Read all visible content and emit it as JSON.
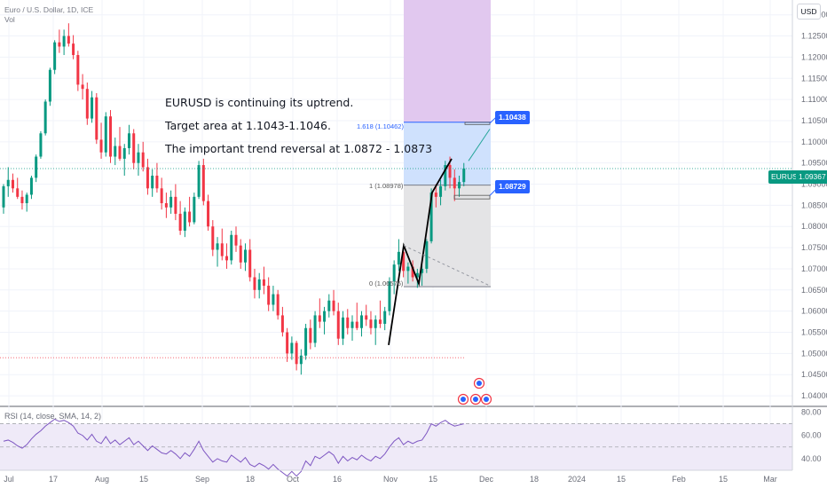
{
  "header": {
    "symbol_line": "Euro / U.S. Dollar, 1D, ICE",
    "vol_label": "Vol",
    "currency_button": "USD"
  },
  "annotations": {
    "line1": "EURUSD is continuing its uptrend.",
    "line2": "Target area at 1.1043-1.1046.",
    "line3": "The important trend reversal at 1.0872 - 1.0873"
  },
  "fib_labels": {
    "f1618": "1.618 (1.10462)",
    "f1": "1 (1.08978)",
    "f0": "0 (1.06576)"
  },
  "price_tags": {
    "target": "1.10438",
    "reversal": "1.08729",
    "symbol": "EURUSD",
    "last_price": "1.09367"
  },
  "colors": {
    "up": "#089981",
    "down": "#f23645",
    "fib_top": "#e1c8ef",
    "fib_mid": "#cfe1fd",
    "fib_low": "#e4e4e6",
    "tag_blue": "#2962ff",
    "rsi_line": "#7e57c2",
    "rsi_band": "#efeaf8",
    "last_line": "#089981"
  },
  "chart_data": {
    "type": "candlestick",
    "price_axis": {
      "ticks": [
        "1.13000",
        "1.12500",
        "1.12000",
        "1.11500",
        "1.11000",
        "1.10500",
        "1.10000",
        "1.09500",
        "1.09000",
        "1.08500",
        "1.08000",
        "1.07500",
        "1.07000",
        "1.06500",
        "1.06000",
        "1.05500",
        "1.05000",
        "1.04500",
        "1.04000"
      ],
      "range": [
        1.0375,
        1.1335
      ]
    },
    "time_axis": {
      "ticks": [
        "Jul",
        "17",
        "Aug",
        "15",
        "Sep",
        "18",
        "Oct",
        "16",
        "Nov",
        "15",
        "Dec",
        "18",
        "2024",
        "15",
        "Feb",
        "15",
        "Mar"
      ]
    },
    "candles": [
      [
        1.0845,
        1.09,
        1.083,
        1.0895
      ],
      [
        1.0895,
        1.094,
        1.087,
        1.091
      ],
      [
        1.091,
        1.0925,
        1.088,
        1.089
      ],
      [
        1.089,
        1.0915,
        1.0865,
        1.087
      ],
      [
        1.087,
        1.0885,
        1.084,
        1.0855
      ],
      [
        1.0855,
        1.088,
        1.0835,
        1.0875
      ],
      [
        1.0875,
        1.092,
        1.0865,
        1.0915
      ],
      [
        1.0915,
        1.097,
        1.0905,
        1.0965
      ],
      [
        1.0965,
        1.1025,
        1.096,
        1.102
      ],
      [
        1.102,
        1.11,
        1.1015,
        1.1095
      ],
      [
        1.1095,
        1.1175,
        1.1085,
        1.117
      ],
      [
        1.117,
        1.124,
        1.116,
        1.1235
      ],
      [
        1.1235,
        1.1265,
        1.121,
        1.1225
      ],
      [
        1.1225,
        1.1265,
        1.1205,
        1.125
      ],
      [
        1.125,
        1.128,
        1.1225,
        1.1232
      ],
      [
        1.1232,
        1.1252,
        1.1195,
        1.1205
      ],
      [
        1.1205,
        1.1215,
        1.112,
        1.1135
      ],
      [
        1.1135,
        1.116,
        1.11,
        1.1125
      ],
      [
        1.1125,
        1.114,
        1.104,
        1.1055
      ],
      [
        1.1055,
        1.112,
        1.1045,
        1.1105
      ],
      [
        1.1105,
        1.1115,
        1.0995,
        1.1005
      ],
      [
        1.1005,
        1.1045,
        1.096,
        1.0975
      ],
      [
        1.0975,
        1.107,
        1.0965,
        1.106
      ],
      [
        1.106,
        1.1075,
        1.095,
        1.0965
      ],
      [
        1.0965,
        1.101,
        1.0945,
        1.099
      ],
      [
        1.099,
        1.1035,
        1.0955,
        1.096
      ],
      [
        1.096,
        1.0995,
        1.092,
        1.0985
      ],
      [
        1.0985,
        1.104,
        1.097,
        1.102
      ],
      [
        1.102,
        1.103,
        1.0935,
        1.095
      ],
      [
        1.095,
        1.0995,
        1.092,
        1.0975
      ],
      [
        1.0975,
        1.1,
        1.093,
        1.094
      ],
      [
        1.094,
        1.096,
        1.0875,
        1.089
      ],
      [
        1.089,
        1.0935,
        1.087,
        1.092
      ],
      [
        1.092,
        1.095,
        1.088,
        1.089
      ],
      [
        1.089,
        1.0915,
        1.084,
        1.0855
      ],
      [
        1.0855,
        1.088,
        1.082,
        1.0845
      ],
      [
        1.0845,
        1.0885,
        1.083,
        1.087
      ],
      [
        1.087,
        1.09,
        1.0815,
        1.083
      ],
      [
        1.083,
        1.086,
        1.078,
        1.079
      ],
      [
        1.079,
        1.0845,
        1.0775,
        1.0835
      ],
      [
        1.0835,
        1.087,
        1.08,
        1.081
      ],
      [
        1.081,
        1.088,
        1.0805,
        1.087
      ],
      [
        1.087,
        1.0955,
        1.0865,
        1.0945
      ],
      [
        1.0945,
        1.096,
        1.085,
        1.086
      ],
      [
        1.086,
        1.0875,
        1.079,
        1.08
      ],
      [
        1.08,
        1.0815,
        1.073,
        1.0745
      ],
      [
        1.0745,
        1.0775,
        1.0705,
        1.076
      ],
      [
        1.076,
        1.0795,
        1.072,
        1.073
      ],
      [
        1.073,
        1.076,
        1.07,
        1.072
      ],
      [
        1.072,
        1.079,
        1.071,
        1.078
      ],
      [
        1.078,
        1.08,
        1.074,
        1.0755
      ],
      [
        1.0755,
        1.077,
        1.07,
        1.0715
      ],
      [
        1.0715,
        1.076,
        1.0695,
        1.0745
      ],
      [
        1.0745,
        1.077,
        1.067,
        1.068
      ],
      [
        1.068,
        1.07,
        1.063,
        1.065
      ],
      [
        1.065,
        1.069,
        1.063,
        1.0675
      ],
      [
        1.0675,
        1.0705,
        1.064,
        1.066
      ],
      [
        1.066,
        1.068,
        1.06,
        1.0615
      ],
      [
        1.0615,
        1.066,
        1.06,
        1.064
      ],
      [
        1.064,
        1.065,
        1.058,
        1.059
      ],
      [
        1.059,
        1.061,
        1.054,
        1.055
      ],
      [
        1.055,
        1.056,
        1.048,
        1.05
      ],
      [
        1.05,
        1.054,
        1.0485,
        1.0525
      ],
      [
        1.0525,
        1.053,
        1.046,
        1.0475
      ],
      [
        1.0475,
        1.051,
        1.045,
        1.0495
      ],
      [
        1.0495,
        1.057,
        1.0485,
        1.056
      ],
      [
        1.056,
        1.058,
        1.051,
        1.0525
      ],
      [
        1.0525,
        1.06,
        1.0515,
        1.059
      ],
      [
        1.059,
        1.063,
        1.056,
        1.0575
      ],
      [
        1.0575,
        1.061,
        1.0545,
        1.06
      ],
      [
        1.06,
        1.064,
        1.0585,
        1.0625
      ],
      [
        1.0625,
        1.065,
        1.059,
        1.06
      ],
      [
        1.06,
        1.062,
        1.052,
        1.0535
      ],
      [
        1.0535,
        1.06,
        1.052,
        1.0585
      ],
      [
        1.0585,
        1.0605,
        1.0545,
        1.056
      ],
      [
        1.056,
        1.059,
        1.053,
        1.0575
      ],
      [
        1.0575,
        1.062,
        1.0555,
        1.056
      ],
      [
        1.056,
        1.06,
        1.054,
        1.059
      ],
      [
        1.059,
        1.0615,
        1.0565,
        1.058
      ],
      [
        1.058,
        1.06,
        1.0545,
        1.056
      ],
      [
        1.056,
        1.059,
        1.052,
        1.058
      ],
      [
        1.058,
        1.0625,
        1.056,
        1.057
      ],
      [
        1.057,
        1.061,
        1.0555,
        1.06
      ],
      [
        1.06,
        1.068,
        1.059,
        1.067
      ],
      [
        1.067,
        1.072,
        1.064,
        1.071
      ],
      [
        1.071,
        1.077,
        1.0695,
        1.074
      ],
      [
        1.074,
        1.0755,
        1.068,
        1.0695
      ],
      [
        1.0695,
        1.0715,
        1.0665,
        1.0705
      ],
      [
        1.0705,
        1.072,
        1.067,
        1.068
      ],
      [
        1.068,
        1.07,
        1.0655,
        1.069
      ],
      [
        1.069,
        1.071,
        1.066,
        1.07
      ],
      [
        1.07,
        1.077,
        1.069,
        1.0765
      ],
      [
        1.0765,
        1.089,
        1.076,
        1.088
      ],
      [
        1.088,
        1.09,
        1.0845,
        1.087
      ],
      [
        1.087,
        1.091,
        1.085,
        1.0895
      ],
      [
        1.0895,
        1.0955,
        1.0885,
        1.0945
      ],
      [
        1.0945,
        1.0965,
        1.089,
        1.0915
      ],
      [
        1.0915,
        1.0935,
        1.086,
        1.089
      ],
      [
        1.089,
        1.092,
        1.087,
        1.0905
      ],
      [
        1.0905,
        1.095,
        1.0895,
        1.0937
      ]
    ],
    "rsi": {
      "label": "RSI (14, close, SMA, 14, 2)",
      "ticks": [
        "80.00",
        "60.00",
        "40.00"
      ],
      "range": [
        30,
        85
      ],
      "values": [
        55,
        56,
        54,
        51,
        49,
        52,
        57,
        61,
        64,
        68,
        71,
        74,
        72,
        73,
        71,
        68,
        62,
        60,
        56,
        61,
        55,
        53,
        59,
        53,
        56,
        52,
        55,
        58,
        52,
        55,
        51,
        47,
        51,
        48,
        45,
        44,
        47,
        44,
        40,
        45,
        42,
        48,
        55,
        47,
        42,
        37,
        40,
        38,
        37,
        43,
        40,
        37,
        41,
        35,
        33,
        36,
        34,
        31,
        35,
        31,
        28,
        25,
        29,
        25,
        29,
        38,
        34,
        42,
        40,
        43,
        46,
        43,
        36,
        42,
        38,
        41,
        39,
        43,
        40,
        38,
        42,
        40,
        44,
        50,
        55,
        58,
        52,
        55,
        53,
        55,
        56,
        62,
        70,
        68,
        71,
        73,
        70,
        68,
        69,
        70
      ]
    }
  }
}
